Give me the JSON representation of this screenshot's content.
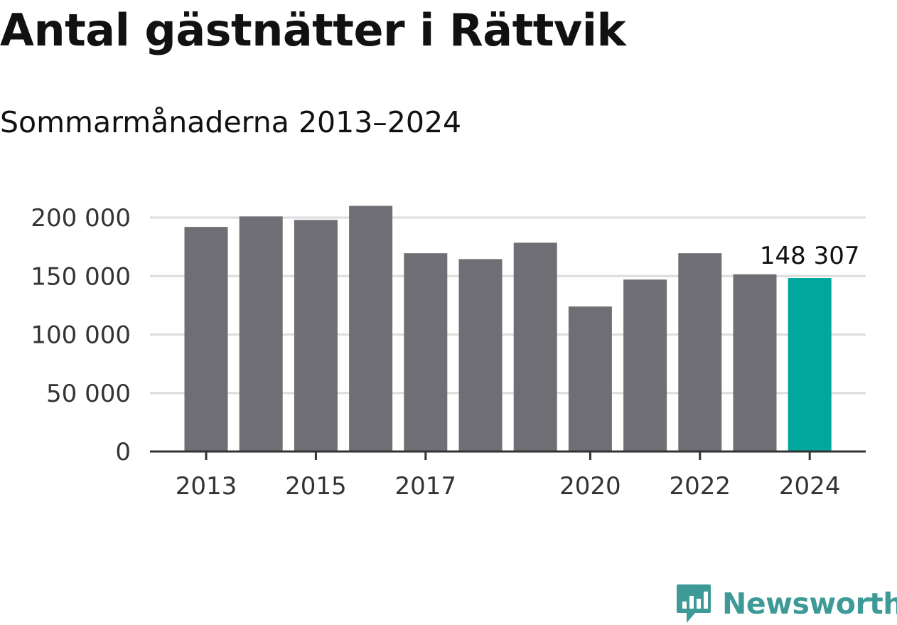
{
  "title": "Antal gästnätter i Rättvik",
  "subtitle": "Sommarmånaderna 2013–2024",
  "colors": {
    "bar": "#6f6e74",
    "highlight": "#00a79c",
    "grid": "#dddddd",
    "axis": "#333333",
    "logo": "#3e9a96"
  },
  "logo": {
    "text": "Newsworthy",
    "icon": "chart-bubble-icon"
  },
  "chart_data": {
    "type": "bar",
    "categories": [
      "2013",
      "2014",
      "2015",
      "2016",
      "2017",
      "2018",
      "2019",
      "2020",
      "2021",
      "2022",
      "2023",
      "2024"
    ],
    "values": [
      192000,
      201000,
      198000,
      210000,
      169500,
      164500,
      178500,
      124000,
      147000,
      169500,
      151500,
      148307
    ],
    "highlight_index": 11,
    "data_labels": [
      {
        "index": 11,
        "text": "148 307"
      }
    ],
    "x_tick_labels": [
      "2013",
      "2015",
      "2017",
      "2020",
      "2022",
      "2024"
    ],
    "y_ticks": [
      0,
      50000,
      100000,
      150000,
      200000
    ],
    "y_tick_labels": [
      "0",
      "50 000",
      "100 000",
      "150 000",
      "200 000"
    ],
    "ylim": [
      0,
      210000
    ],
    "grid": true,
    "legend": "none"
  }
}
